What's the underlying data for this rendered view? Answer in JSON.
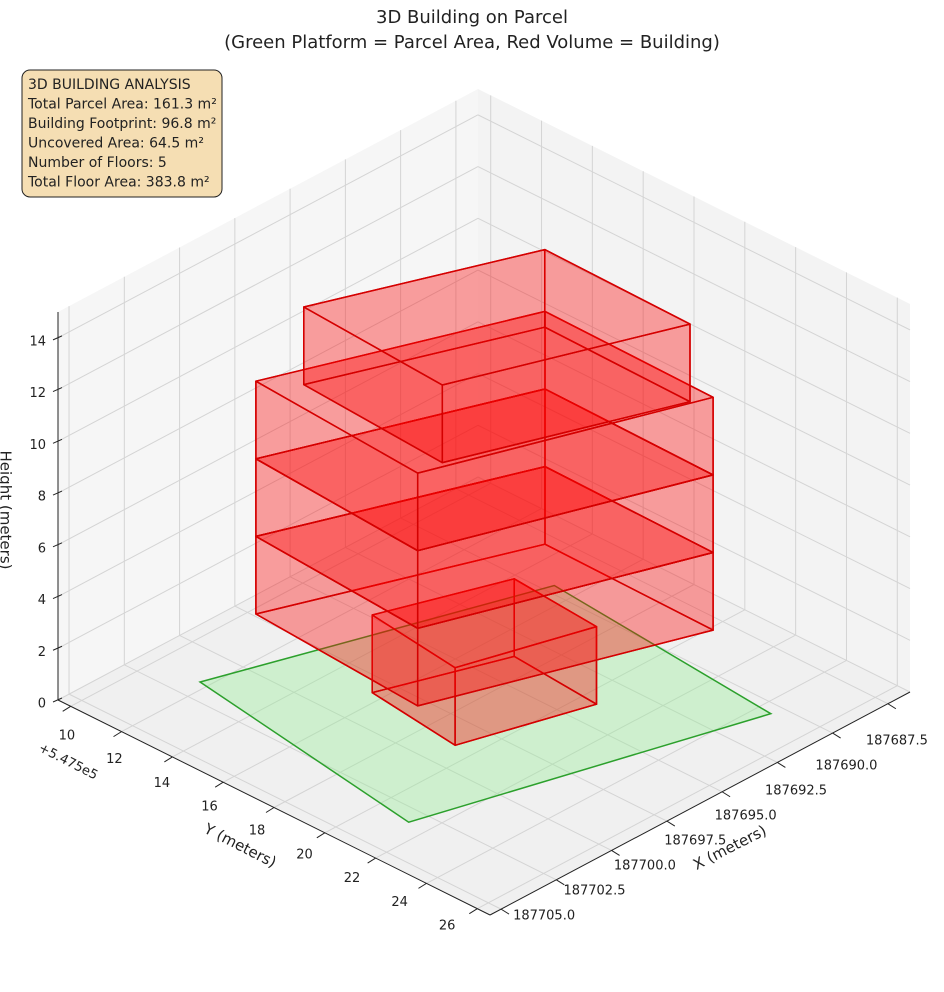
{
  "chart_data": {
    "type": "3d",
    "title": "3D Building on Parcel",
    "subtitle": "(Green Platform = Parcel Area, Red Volume = Building)",
    "xlabel": "X (meters)",
    "ylabel": "Y (meters)",
    "zlabel": "Height (meters)",
    "y_offset_label": "+5.475e5",
    "annotation": [
      "3D BUILDING ANALYSIS",
      "Total Parcel Area: 161.3 m²",
      "Building Footprint: 96.8 m²",
      "Uncovered Area: 64.5 m²",
      "Number of Floors: 5",
      "Total Floor Area: 383.8 m²"
    ],
    "xlim": [
      187686.5,
      187705.5
    ],
    "ylim": [
      9.5,
      26.5
    ],
    "zlim": [
      0,
      15
    ],
    "xticks": [
      187687.5,
      {
        "value": 187690,
        "label": "187690.0"
      },
      187692.5,
      {
        "value": 187695,
        "label": "187695.0"
      },
      187697.5,
      {
        "value": 187700,
        "label": "187700.0"
      },
      187702.5,
      {
        "value": 187705,
        "label": "187705.0"
      }
    ],
    "yticks": [
      10,
      12,
      14,
      16,
      18,
      20,
      22,
      24,
      26
    ],
    "zticks": [
      0,
      2,
      4,
      6,
      8,
      10,
      12,
      14
    ],
    "grid": true,
    "parcel": {
      "color": "#90ee90",
      "edgecolor": "#2ca02c",
      "x": [
        187701.6,
        187689.6,
        187690.5,
        187703.2
      ],
      "y": [
        11.7,
        15.2,
        24.5,
        21.3
      ]
    },
    "building": {
      "color": "#ff0000",
      "edgecolor": "#d40000",
      "floors": [
        {
          "x": [
            187698.3,
            187698.8,
            187693.9,
            187693.6
          ],
          "y": [
            15.6,
            19.3,
            20.6,
            17.1
          ],
          "z": [
            0,
            3
          ]
        },
        {
          "x": [
            187700.8,
            187701.3,
            187691.5,
            187691.4
          ],
          "y": [
            13.2,
            20.0,
            23.1,
            16.4
          ],
          "z": [
            3,
            6
          ]
        },
        {
          "x": [
            187700.8,
            187701.3,
            187691.5,
            187691.4
          ],
          "y": [
            13.2,
            20.0,
            23.1,
            16.4
          ],
          "z": [
            6,
            9
          ]
        },
        {
          "x": [
            187700.8,
            187701.3,
            187691.5,
            187691.4
          ],
          "y": [
            13.2,
            20.0,
            23.1,
            16.4
          ],
          "z": [
            9,
            12
          ]
        },
        {
          "x": [
            187699.9,
            187700.3,
            187692.2,
            187692.1
          ],
          "y": [
            14.3,
            20.1,
            22.8,
            17.0
          ],
          "z": [
            12,
            15
          ]
        }
      ]
    }
  }
}
